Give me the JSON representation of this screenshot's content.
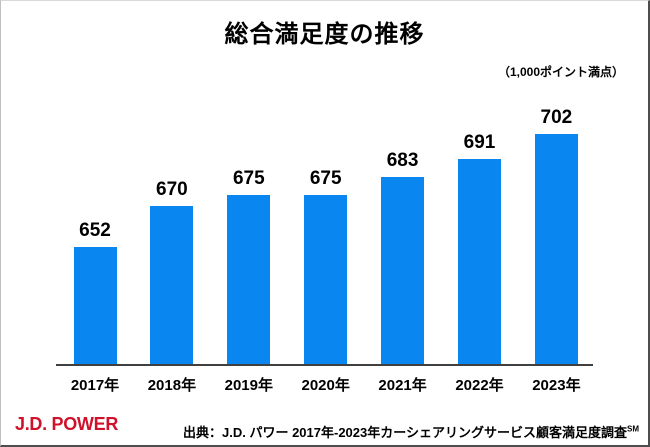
{
  "title": "総合満足度の推移",
  "note": "（1,000ポイント満点）",
  "footer": {
    "logo": "J.D. POWER",
    "source": "出典：J.D. パワー 2017年-2023年カーシェアリングサービス顧客満足度調査",
    "source_superscript": "SM"
  },
  "colors": {
    "bar": "#0986EF",
    "axis": "#404040",
    "logo_red": "#D0112B",
    "text": "#000000"
  },
  "chart_data": {
    "type": "bar",
    "title": "総合満足度の推移",
    "annotation": "（1,000ポイント満点）",
    "categories": [
      "2017年",
      "2018年",
      "2019年",
      "2020年",
      "2021年",
      "2022年",
      "2023年"
    ],
    "values": [
      652,
      670,
      675,
      675,
      683,
      691,
      702
    ],
    "xlabel": "",
    "ylabel": "",
    "ylim": [
      600,
      710
    ],
    "grid": false,
    "legend": false,
    "data_labels": true,
    "bar_color": "#0986EF"
  }
}
